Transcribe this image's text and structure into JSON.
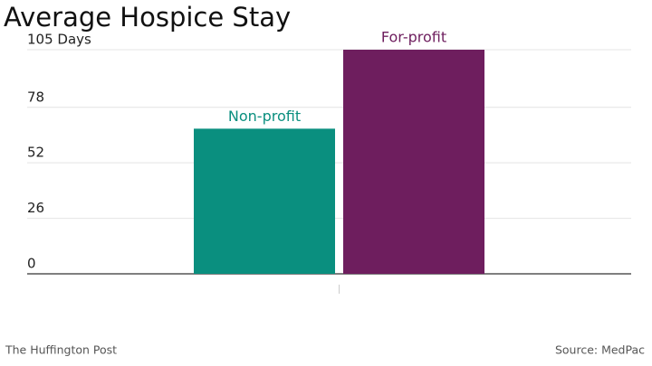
{
  "chart_data": {
    "type": "bar",
    "title": "Average Hospice Stay",
    "categories": [
      null
    ],
    "series": [
      {
        "name": "Non-profit",
        "color": "#0a8f7f",
        "values": [
          68
        ]
      },
      {
        "name": "For-profit",
        "color": "#6e1e5e",
        "values": [
          105
        ]
      }
    ],
    "ylim": [
      0,
      105
    ],
    "yticks": [
      0,
      26,
      52,
      78,
      {
        "value": 105,
        "label": "105 Days"
      }
    ],
    "grid": true,
    "credit": "The Huffington Post",
    "source": "Source: MedPac"
  }
}
